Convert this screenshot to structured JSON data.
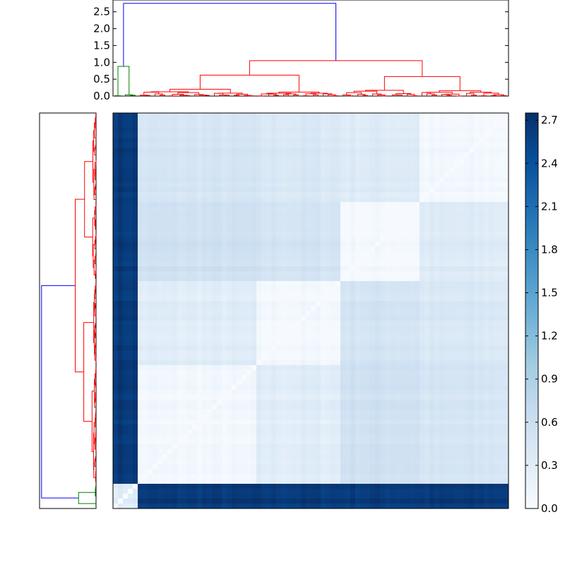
{
  "chart_data": [
    {
      "type": "heatmap",
      "panel": "distance-matrix",
      "title": "",
      "xlabel": "",
      "ylabel": "",
      "n_leaves": 80,
      "clusters": [
        {
          "name": "",
          "size": 5,
          "color": "#008000"
        },
        {
          "name": "",
          "size": 24,
          "color": "#ff0000"
        },
        {
          "name": "",
          "size": 17,
          "color": "#ff0000"
        },
        {
          "name": "",
          "size": 16,
          "color": "#ff0000"
        },
        {
          "name": "",
          "size": 18,
          "color": "#ff0000"
        }
      ],
      "between_cluster_distance": {
        "green_to_red": 2.65,
        "red_blocks": [
          [
            0.05,
            0.3,
            0.55,
            0.45
          ],
          [
            0.3,
            0.05,
            0.5,
            0.4
          ],
          [
            0.55,
            0.5,
            0.05,
            0.35
          ],
          [
            0.45,
            0.4,
            0.35,
            0.05
          ]
        ]
      },
      "colormap": "Blues",
      "vmin": 0.0,
      "vmax": 2.75,
      "colorbar_ticks": [
        "0.0",
        "0.3",
        "0.6",
        "0.9",
        "1.2",
        "1.5",
        "1.8",
        "2.1",
        "2.4",
        "2.7"
      ],
      "colorbar_tick_values": [
        0.0,
        0.3,
        0.6,
        0.9,
        1.2,
        1.5,
        1.8,
        2.1,
        2.4,
        2.7
      ]
    },
    {
      "type": "dendrogram",
      "panel": "top-dendrogram",
      "orientation": "top",
      "ylim": [
        0,
        2.85
      ],
      "yticks": [
        "0.0",
        "0.5",
        "1.0",
        "1.5",
        "2.0",
        "2.5"
      ],
      "ytick_values": [
        0.0,
        0.5,
        1.0,
        1.5,
        2.0,
        2.5
      ],
      "root_height": 2.75,
      "red_root_height": 1.05,
      "green_root_height": 0.88,
      "colors": {
        "root": "#0000ff",
        "green_cluster": "#008000",
        "red_cluster": "#ff0000"
      }
    },
    {
      "type": "dendrogram",
      "panel": "left-dendrogram",
      "orientation": "left",
      "root_height": 2.75,
      "red_root_height": 1.05,
      "green_root_height": 0.88,
      "colors": {
        "root": "#0000ff",
        "green_cluster": "#008000",
        "red_cluster": "#ff0000"
      }
    }
  ]
}
